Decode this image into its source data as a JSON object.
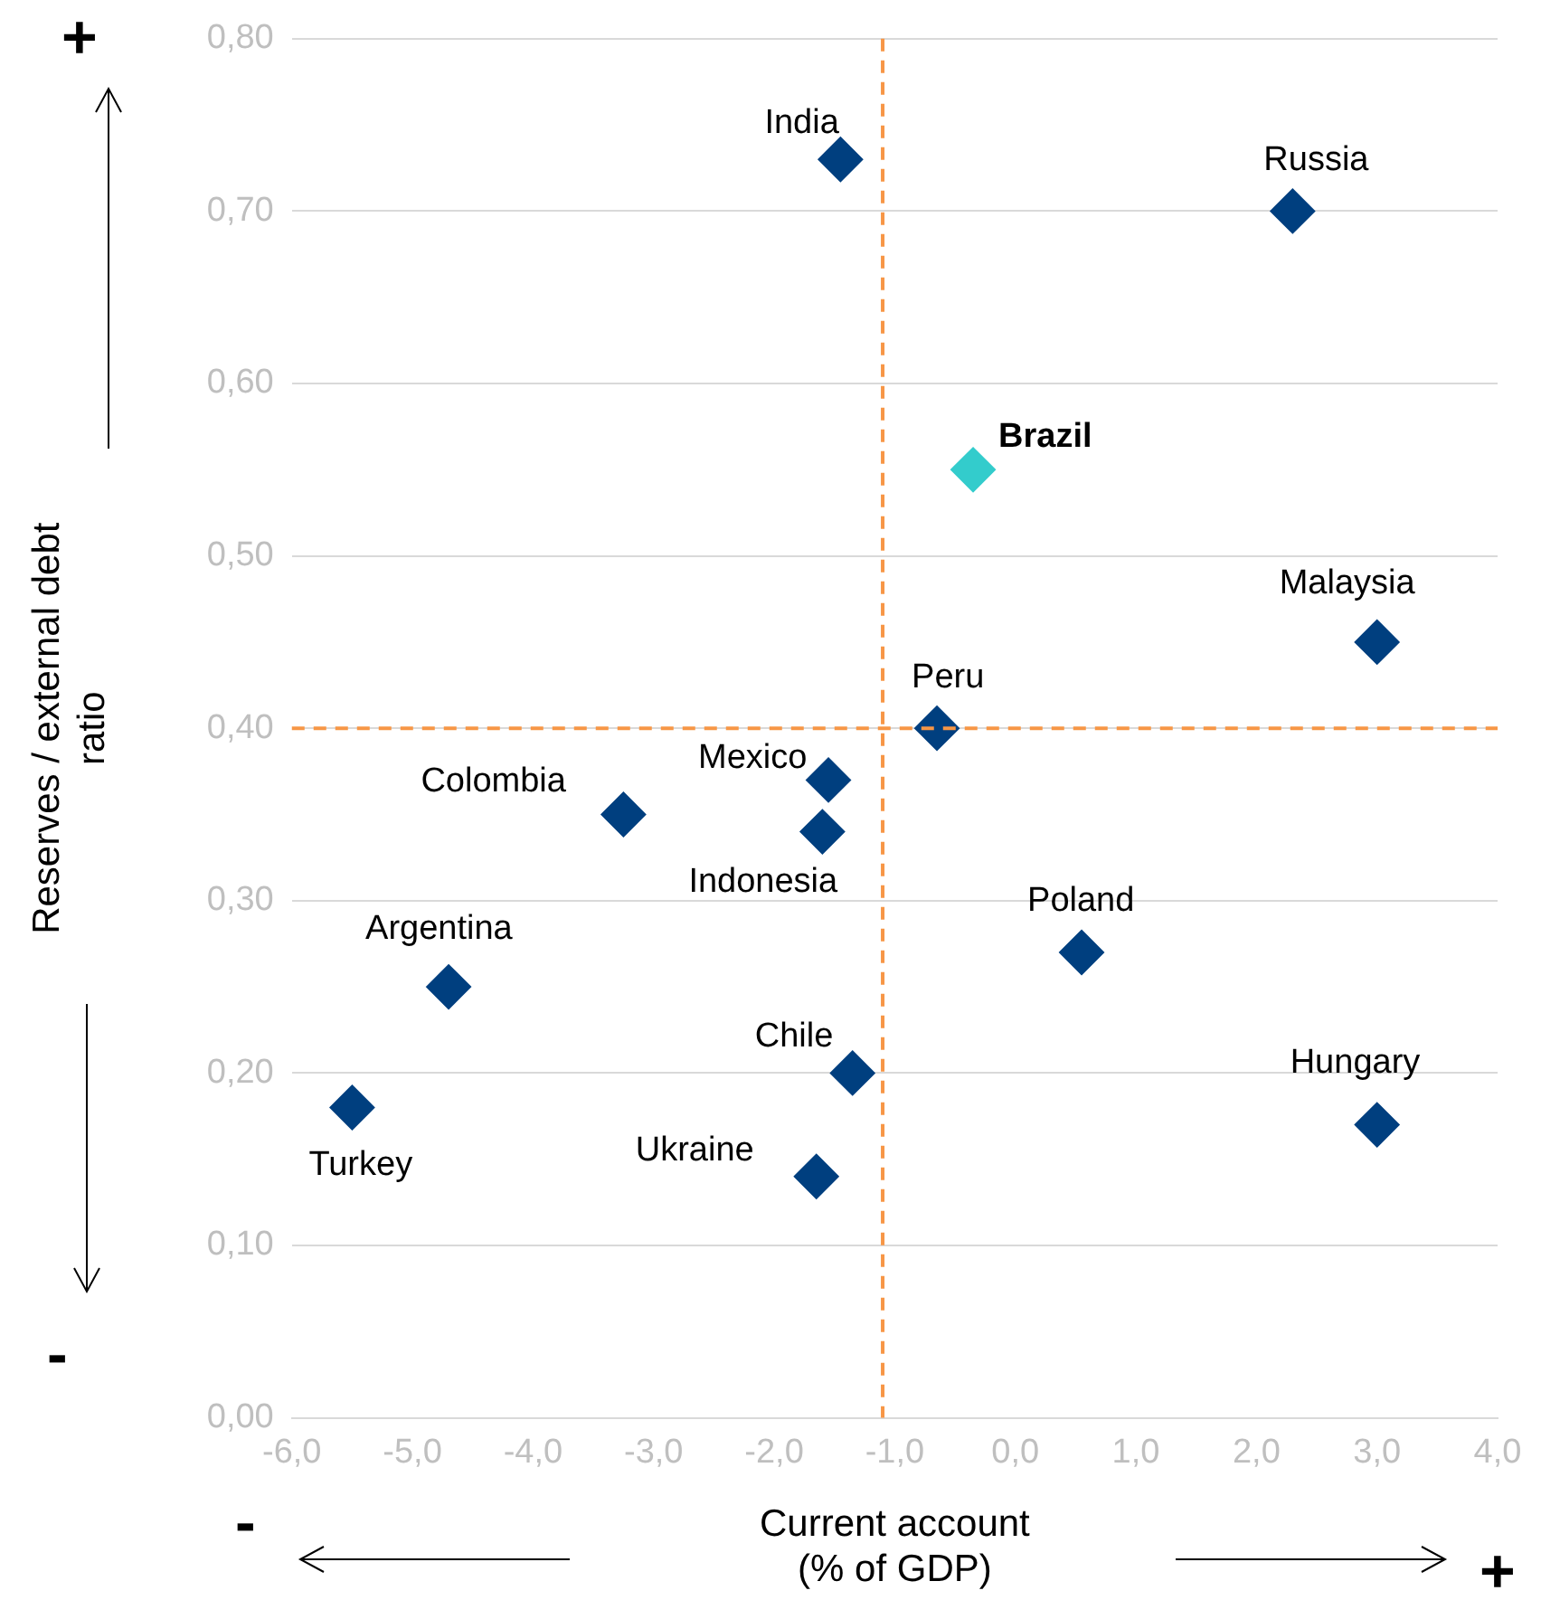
{
  "chart_data": {
    "type": "scatter",
    "xlabel": "Current account\n(% of GDP)",
    "ylabel": "Reserves / external debt\nratio",
    "series": [
      {
        "name": "India",
        "color": "#003f7f",
        "x": [
          -1.45
        ],
        "values": [
          0.73
        ]
      },
      {
        "name": "Russia",
        "color": "#003f7f",
        "x": [
          2.3
        ],
        "values": [
          0.7
        ]
      },
      {
        "name": "Brazil",
        "color": "#33cccc",
        "x": [
          -0.35
        ],
        "values": [
          0.55
        ]
      },
      {
        "name": "Malaysia",
        "color": "#003f7f",
        "x": [
          3.0
        ],
        "values": [
          0.45
        ]
      },
      {
        "name": "Peru",
        "color": "#003f7f",
        "x": [
          -0.65
        ],
        "values": [
          0.4
        ]
      },
      {
        "name": "Mexico",
        "color": "#003f7f",
        "x": [
          -1.55
        ],
        "values": [
          0.37
        ]
      },
      {
        "name": "Colombia",
        "color": "#003f7f",
        "x": [
          -3.25
        ],
        "values": [
          0.35
        ]
      },
      {
        "name": "Indonesia",
        "color": "#003f7f",
        "x": [
          -1.6
        ],
        "values": [
          0.34
        ]
      },
      {
        "name": "Poland",
        "color": "#003f7f",
        "x": [
          0.55
        ],
        "values": [
          0.27
        ]
      },
      {
        "name": "Argentina",
        "color": "#003f7f",
        "x": [
          -4.7
        ],
        "values": [
          0.25
        ]
      },
      {
        "name": "Chile",
        "color": "#003f7f",
        "x": [
          -1.35
        ],
        "values": [
          0.2
        ]
      },
      {
        "name": "Turkey",
        "color": "#003f7f",
        "x": [
          -5.5
        ],
        "values": [
          0.18
        ]
      },
      {
        "name": "Hungary",
        "color": "#003f7f",
        "x": [
          3.0
        ],
        "values": [
          0.17
        ]
      },
      {
        "name": "Ukraine",
        "color": "#003f7f",
        "x": [
          -1.65
        ],
        "values": [
          0.14
        ]
      }
    ],
    "xlim": [
      -6,
      4
    ],
    "ylim": [
      0,
      0.8
    ],
    "xticks": [
      {
        "value": -6,
        "label": "-6,0"
      },
      {
        "value": -5,
        "label": "-5,0"
      },
      {
        "value": -4,
        "label": "-4,0"
      },
      {
        "value": -3,
        "label": "-3,0"
      },
      {
        "value": -2,
        "label": "-2,0"
      },
      {
        "value": -1,
        "label": "-1,0"
      },
      {
        "value": 0,
        "label": "0,0"
      },
      {
        "value": 1,
        "label": "1,0"
      },
      {
        "value": 2,
        "label": "2,0"
      },
      {
        "value": 3,
        "label": "3,0"
      },
      {
        "value": 4,
        "label": "4,0"
      }
    ],
    "yticks": [
      {
        "value": 0,
        "label": "0,00"
      },
      {
        "value": 0.1,
        "label": "0,10"
      },
      {
        "value": 0.2,
        "label": "0,20"
      },
      {
        "value": 0.3,
        "label": "0,30"
      },
      {
        "value": 0.4,
        "label": "0,40"
      },
      {
        "value": 0.5,
        "label": "0,50"
      },
      {
        "value": 0.6,
        "label": "0,60"
      },
      {
        "value": 0.7,
        "label": "0,70"
      },
      {
        "value": 0.8,
        "label": "0,80"
      }
    ],
    "ref_lines": [
      {
        "axis": "x",
        "value": -1.1,
        "color": "#f79646",
        "line_style": "dashed"
      },
      {
        "axis": "y",
        "value": 0.4,
        "color": "#f79646",
        "line_style": "dashed"
      }
    ],
    "annotations": [
      "+",
      "-",
      "-",
      "+"
    ],
    "grid": "y",
    "marker": "diamond",
    "legend": false
  }
}
